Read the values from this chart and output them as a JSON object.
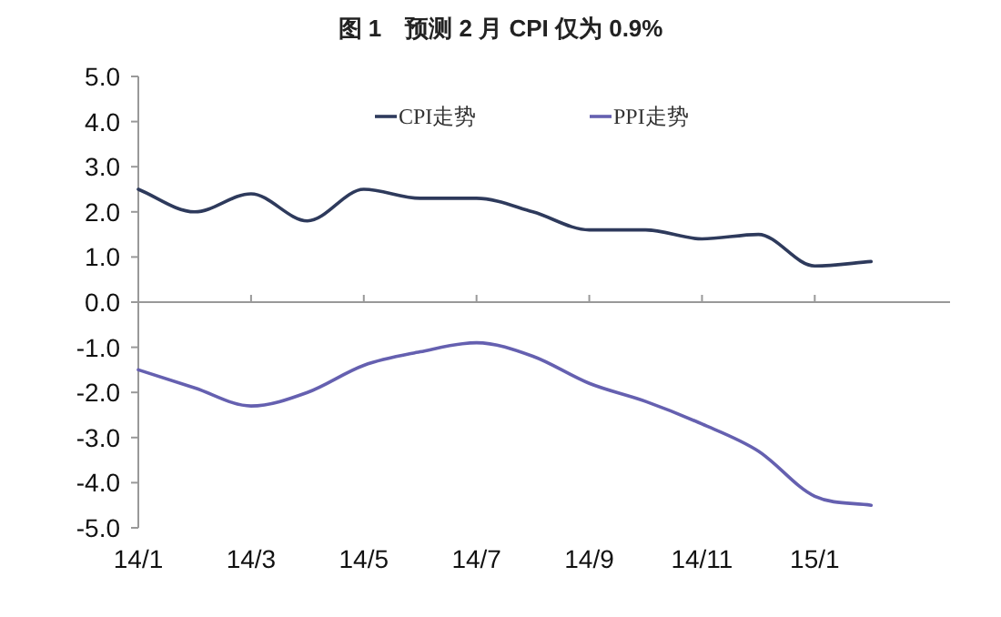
{
  "chart_data": {
    "type": "line",
    "title": "图 1　预测 2 月 CPI 仅为 0.9%",
    "categories": [
      "14/1",
      null,
      "14/3",
      null,
      "14/5",
      null,
      "14/7",
      null,
      "14/9",
      null,
      "14/11",
      null,
      "15/1",
      null
    ],
    "series": [
      {
        "name": "CPI走势",
        "color": "#2e3a5c",
        "values": [
          2.5,
          2.0,
          2.4,
          1.8,
          2.5,
          2.3,
          2.3,
          2.0,
          1.6,
          1.6,
          1.4,
          1.5,
          0.8,
          0.9
        ]
      },
      {
        "name": "PPI走势",
        "color": "#6560b0",
        "values": [
          -1.5,
          -1.9,
          -2.3,
          -2.0,
          -1.4,
          -1.1,
          -0.9,
          -1.2,
          -1.8,
          -2.2,
          -2.7,
          -3.3,
          -4.3,
          -4.5
        ]
      }
    ],
    "ylim": [
      -5,
      5
    ],
    "yticks": [
      {
        "value": 5,
        "label": "5.0"
      },
      {
        "value": 4,
        "label": "4.0"
      },
      {
        "value": 3,
        "label": "3.0"
      },
      {
        "value": 2,
        "label": "2.0"
      },
      {
        "value": 1,
        "label": "1.0"
      },
      {
        "value": 0,
        "label": "0.0"
      },
      {
        "value": -1,
        "label": "-1.0"
      },
      {
        "value": -2,
        "label": "-2.0"
      },
      {
        "value": -3,
        "label": "-3.0"
      },
      {
        "value": -4,
        "label": "-4.0"
      },
      {
        "value": -5,
        "label": "-5.0"
      }
    ],
    "legend": "top"
  }
}
